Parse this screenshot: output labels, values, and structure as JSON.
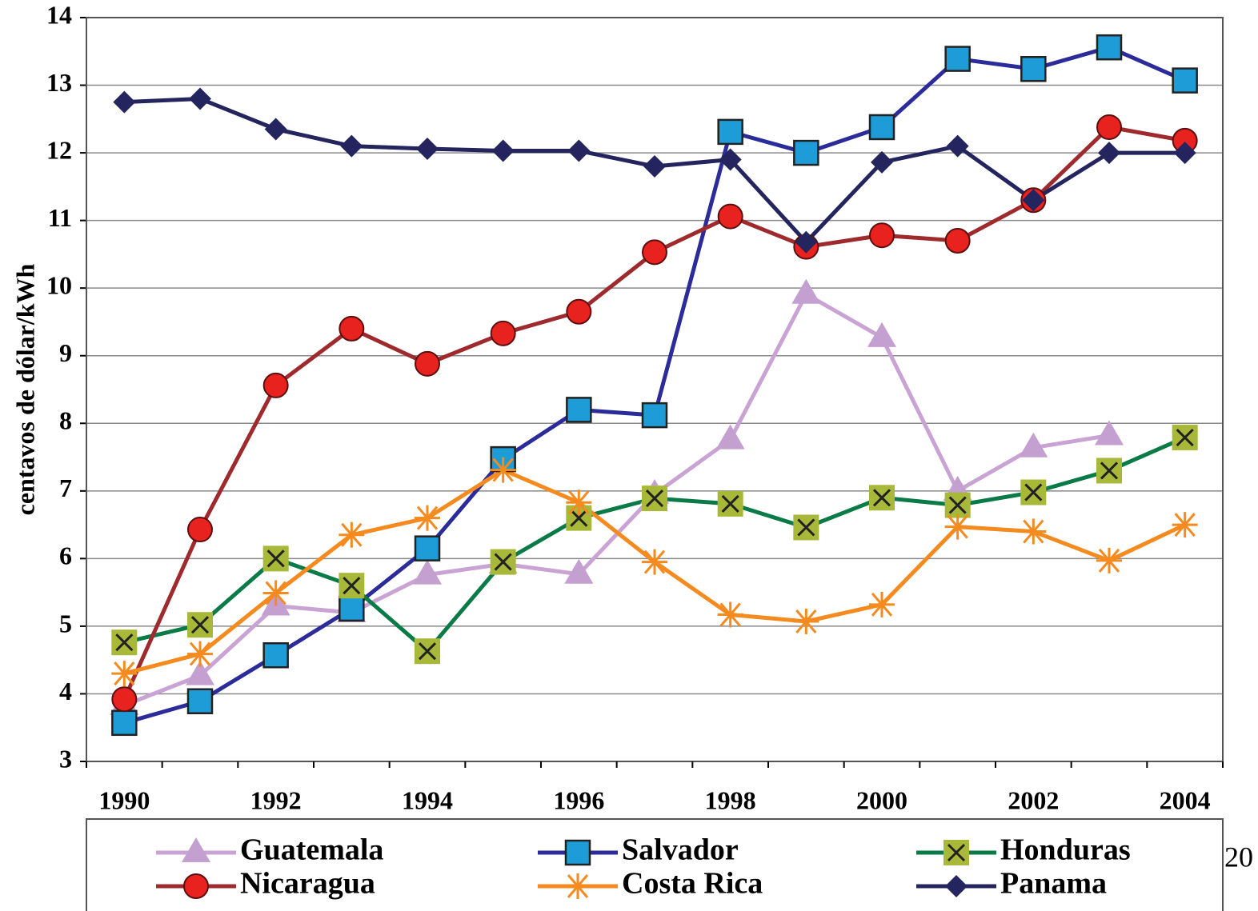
{
  "chart_data": {
    "type": "line",
    "y_label": "centavos de dólar/kWh",
    "annotation": "20",
    "categories": [
      "1990",
      null,
      "1992",
      null,
      "1994",
      null,
      "1996",
      null,
      "1998",
      null,
      "2000",
      null,
      "2002",
      null,
      "2004"
    ],
    "ylim": [
      3,
      14
    ],
    "yticks": [
      3,
      4,
      5,
      6,
      7,
      8,
      9,
      10,
      11,
      12,
      13,
      14
    ],
    "grid": true,
    "legend": "bottom",
    "series": [
      {
        "name": "Guatemala",
        "color": "#c9a3d3",
        "marker": "triangle",
        "marker_color": "#c4a0d0",
        "values": [
          3.83,
          4.27,
          5.3,
          5.2,
          5.76,
          5.92,
          5.77,
          6.95,
          7.76,
          9.91,
          9.27,
          7.0,
          7.64,
          7.82,
          null
        ]
      },
      {
        "name": "Salvador",
        "color": "#2b2b9a",
        "marker": "square",
        "marker_color": "#1e9cd7",
        "values": [
          3.57,
          3.89,
          4.57,
          5.26,
          6.15,
          7.47,
          8.2,
          8.12,
          12.31,
          12.0,
          12.38,
          13.39,
          13.24,
          13.56,
          13.07
        ]
      },
      {
        "name": "Honduras",
        "color": "#0a7a46",
        "marker": "x-square",
        "marker_color": "#a8b93a",
        "values": [
          4.76,
          5.02,
          6.0,
          5.6,
          4.63,
          5.95,
          6.6,
          6.89,
          6.81,
          6.46,
          6.9,
          6.79,
          6.98,
          7.3,
          7.79
        ]
      },
      {
        "name": "Nicaragua",
        "color": "#9e2a2e",
        "marker": "circle",
        "marker_color": "#e8221e",
        "values": [
          3.92,
          6.43,
          8.56,
          9.4,
          8.88,
          9.33,
          9.65,
          10.53,
          11.06,
          10.61,
          10.78,
          10.7,
          11.3,
          12.38,
          12.18
        ]
      },
      {
        "name": "Costa Rica",
        "color": "#f58a1f",
        "marker": "asterisk",
        "marker_color": "#f58a1f",
        "values": [
          4.3,
          4.59,
          5.49,
          6.35,
          6.6,
          7.31,
          6.83,
          5.95,
          5.17,
          5.07,
          5.32,
          6.47,
          6.4,
          5.97,
          6.5
        ]
      },
      {
        "name": "Panama",
        "color": "#24245e",
        "marker": "diamond",
        "marker_color": "#24245e",
        "values": [
          12.75,
          12.8,
          12.35,
          12.1,
          12.06,
          12.03,
          12.03,
          11.8,
          11.9,
          10.68,
          11.86,
          12.1,
          11.3,
          12.0,
          12.0
        ]
      }
    ]
  }
}
